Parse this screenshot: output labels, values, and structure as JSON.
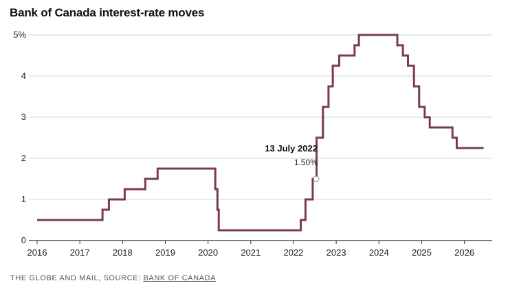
{
  "title": "Bank of Canada interest-rate moves",
  "footer": {
    "prefix": "THE GLOBE AND MAIL, SOURCE: ",
    "source_link": "BANK OF CANADA"
  },
  "colors": {
    "line": "#7a3a55",
    "grid": "#d4d4d4",
    "axis": "#333333"
  },
  "chart_data": {
    "type": "line",
    "step": true,
    "title": "Bank of Canada interest-rate moves",
    "xlabel": "",
    "ylabel": "",
    "xlim": [
      2016.0,
      2026.65
    ],
    "ylim": [
      0,
      5
    ],
    "grid": true,
    "yticks": [
      {
        "value": 0,
        "label": "0"
      },
      {
        "value": 1,
        "label": "1"
      },
      {
        "value": 2,
        "label": "2"
      },
      {
        "value": 3,
        "label": "3"
      },
      {
        "value": 4,
        "label": "4"
      },
      {
        "value": 5,
        "label": "5%"
      }
    ],
    "xticks": [
      {
        "value": 2016,
        "label": "2016"
      },
      {
        "value": 2017,
        "label": "2017"
      },
      {
        "value": 2018,
        "label": "2018"
      },
      {
        "value": 2019,
        "label": "2019"
      },
      {
        "value": 2020,
        "label": "2020"
      },
      {
        "value": 2021,
        "label": "2021"
      },
      {
        "value": 2022,
        "label": "2022"
      },
      {
        "value": 2023,
        "label": "2023"
      },
      {
        "value": 2024,
        "label": "2024"
      },
      {
        "value": 2025,
        "label": "2025"
      },
      {
        "value": 2026,
        "label": "2026"
      }
    ],
    "series": [
      {
        "points": [
          [
            2016.0,
            0.5
          ],
          [
            2017.53,
            0.75
          ],
          [
            2017.68,
            1.0
          ],
          [
            2018.05,
            1.25
          ],
          [
            2018.53,
            1.5
          ],
          [
            2018.82,
            1.75
          ],
          [
            2020.17,
            1.25
          ],
          [
            2020.22,
            0.75
          ],
          [
            2020.25,
            0.25
          ],
          [
            2022.17,
            0.5
          ],
          [
            2022.28,
            1.0
          ],
          [
            2022.45,
            1.5
          ],
          [
            2022.54,
            2.5
          ],
          [
            2022.69,
            3.25
          ],
          [
            2022.82,
            3.75
          ],
          [
            2022.92,
            4.25
          ],
          [
            2023.07,
            4.5
          ],
          [
            2023.43,
            4.75
          ],
          [
            2023.53,
            5.0
          ],
          [
            2024.43,
            4.75
          ],
          [
            2024.56,
            4.5
          ],
          [
            2024.68,
            4.25
          ],
          [
            2024.82,
            3.75
          ],
          [
            2024.94,
            3.25
          ],
          [
            2025.07,
            3.0
          ],
          [
            2025.19,
            2.75
          ],
          [
            2025.72,
            2.5
          ],
          [
            2025.82,
            2.25
          ],
          [
            2026.45,
            2.25
          ]
        ]
      }
    ],
    "annotation": {
      "date": "13 July 2022",
      "value": "1.50%",
      "x": 2022.53,
      "y": 1.5
    }
  }
}
